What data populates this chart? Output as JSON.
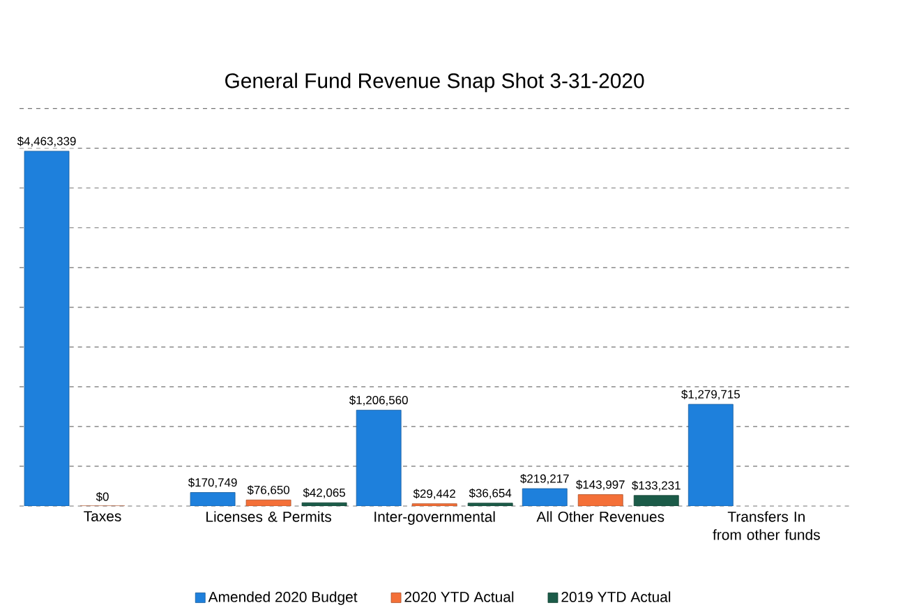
{
  "chart_data": {
    "type": "bar",
    "title": "General Fund Revenue Snap Shot 3-31-2020",
    "categories": [
      "Taxes",
      "Licenses & Permits",
      "Inter-governmental",
      "All Other Revenues",
      "Transfers In from other funds"
    ],
    "series": [
      {
        "name": "Amended 2020 Budget",
        "color": "#1e80dc",
        "values": [
          4463339,
          170749,
          1206560,
          219217,
          1279715
        ],
        "value_labels": [
          "$4,463,339",
          "$170,749",
          "$1,206,560",
          "$219,217",
          "$1,279,715"
        ]
      },
      {
        "name": "2020 YTD Actual",
        "color": "#f47038",
        "values": [
          0,
          76650,
          29442,
          143997,
          null
        ],
        "value_labels": [
          "$0",
          "$76,650",
          "$29,442",
          "$143,997",
          null
        ]
      },
      {
        "name": "2019 YTD Actual",
        "color": "#1b5b48",
        "values": [
          null,
          42065,
          36654,
          133231,
          null
        ],
        "value_labels": [
          null,
          "$42,065",
          "$36,654",
          "$133,231",
          null
        ]
      }
    ],
    "ylim": [
      0,
      5000000
    ],
    "yticks": [
      {
        "value": 0,
        "label": null
      },
      {
        "value": 500000,
        "label": null
      },
      {
        "value": 1000000,
        "label": null
      },
      {
        "value": 1500000,
        "label": null
      },
      {
        "value": 2000000,
        "label": null
      },
      {
        "value": 2500000,
        "label": null
      },
      {
        "value": 3000000,
        "label": null
      },
      {
        "value": 3500000,
        "label": null
      },
      {
        "value": 4000000,
        "label": null
      },
      {
        "value": 4500000,
        "label": null
      },
      {
        "value": 5000000,
        "label": null
      }
    ],
    "tick_labels": "x",
    "grid": "y",
    "legend": "bottom"
  }
}
